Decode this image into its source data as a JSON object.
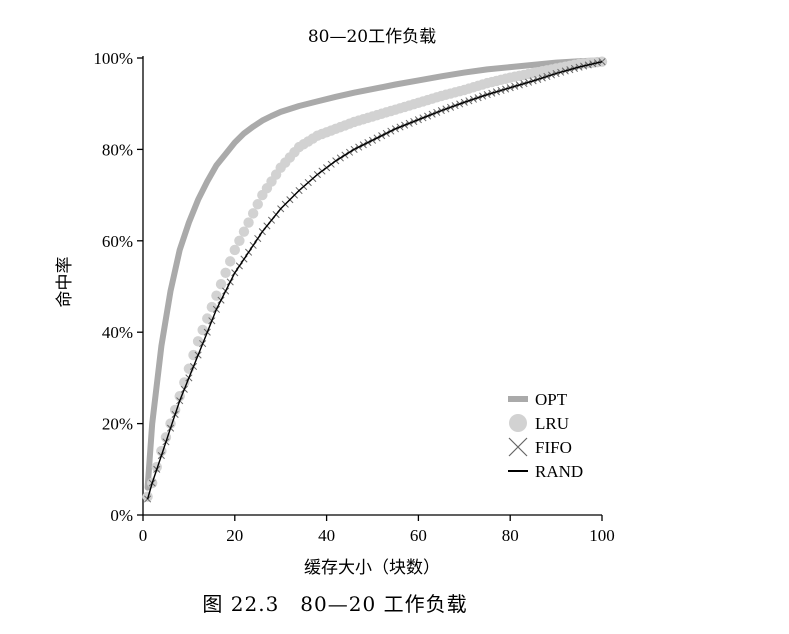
{
  "chart_data": {
    "type": "line",
    "title": "80—20工作负载",
    "xlabel": "缓存大小（块数）",
    "ylabel": "命中率",
    "xlim": [
      0,
      100
    ],
    "ylim": [
      0,
      100
    ],
    "x_ticks": [
      "0",
      "20",
      "40",
      "60",
      "80",
      "100"
    ],
    "y_ticks": [
      "0%",
      "20%",
      "40%",
      "60%",
      "80%",
      "100%"
    ],
    "legend_position": "bottom-right",
    "x": [
      1,
      2,
      4,
      6,
      8,
      10,
      12,
      14,
      16,
      18,
      20,
      22,
      24,
      26,
      28,
      30,
      34,
      38,
      42,
      46,
      50,
      55,
      60,
      65,
      70,
      75,
      80,
      85,
      90,
      95,
      100
    ],
    "series": [
      {
        "name": "OPT",
        "color": "#aaaaaa",
        "marker": "thick-line",
        "values": [
          6,
          20,
          37,
          49,
          58,
          64,
          69,
          73,
          76.5,
          79,
          81.5,
          83.5,
          85,
          86.3,
          87.3,
          88.2,
          89.5,
          90.5,
          91.5,
          92.4,
          93.2,
          94.2,
          95.1,
          96,
          96.8,
          97.5,
          98,
          98.5,
          99,
          99.3,
          99.5
        ]
      },
      {
        "name": "LRU",
        "color": "#d2d2d2",
        "marker": "circle",
        "values": [
          4,
          7,
          14,
          20,
          26,
          32,
          38,
          43,
          48,
          53,
          58,
          62,
          66,
          70,
          73,
          76,
          80.5,
          83,
          84.5,
          86,
          87.2,
          88.7,
          90.2,
          91.7,
          93,
          94.5,
          95.7,
          96.7,
          97.7,
          98.7,
          99.2
        ]
      },
      {
        "name": "FIFO",
        "color": "#666666",
        "marker": "x",
        "values": [
          3.5,
          7,
          13,
          19,
          25,
          30,
          35,
          40,
          45,
          49,
          53,
          56,
          59,
          62,
          64.5,
          67,
          71,
          74.5,
          77.5,
          80,
          82,
          84.5,
          86.5,
          88.5,
          90.3,
          92,
          93.5,
          95,
          96.6,
          98,
          99.2
        ]
      },
      {
        "name": "RAND",
        "color": "#000000",
        "marker": "line",
        "values": [
          3.5,
          7,
          13,
          19,
          25,
          30,
          35,
          40,
          45,
          49,
          53,
          56,
          59,
          62,
          64.5,
          67,
          71,
          74.5,
          77.5,
          80,
          82,
          84.5,
          86.5,
          88.5,
          90.3,
          92,
          93.5,
          95,
          96.6,
          98,
          99.2
        ]
      }
    ]
  },
  "caption": "图 22.3　80—20 工作负载"
}
